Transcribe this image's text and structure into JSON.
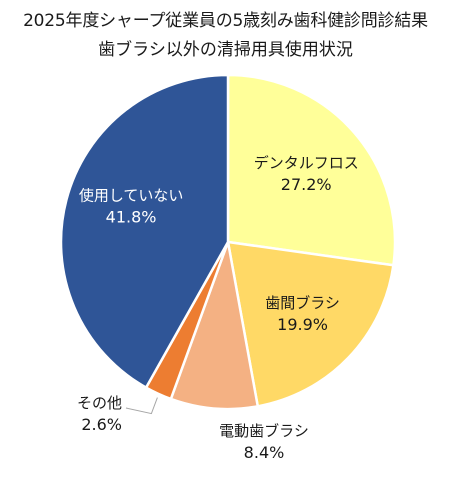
{
  "title": {
    "line1": "2025年度シャープ従業員の5歳刻み歯科健診問診結果",
    "line2": "歯ブラシ以外の清掃用具使用状況"
  },
  "chart_data": {
    "type": "pie",
    "title": "2025年度シャープ従業員の5歳刻み歯科健診問診結果 歯ブラシ以外の清掃用具使用状況",
    "start_angle": "12 o'clock",
    "direction": "clockwise",
    "slices": [
      {
        "label": "デンタルフロス",
        "value": 27.2,
        "value_label": "27.2%",
        "color": "#FFFF99",
        "label_color": "#1a1a1a"
      },
      {
        "label": "歯間ブラシ",
        "value": 19.9,
        "value_label": "19.9%",
        "color": "#FFD966",
        "label_color": "#1a1a1a"
      },
      {
        "label": "電動歯ブラシ",
        "value": 8.4,
        "value_label": "8.4%",
        "color": "#F4B183",
        "label_color": "#1a1a1a"
      },
      {
        "label": "その他",
        "value": 2.6,
        "value_label": "2.6%",
        "color": "#ED7D31",
        "label_color": "#1a1a1a"
      },
      {
        "label": "使用していない",
        "value": 41.8,
        "value_label": "41.8%",
        "color": "#2F5597",
        "label_color": "#ffffff"
      }
    ],
    "slice_border_color": "#ffffff"
  }
}
